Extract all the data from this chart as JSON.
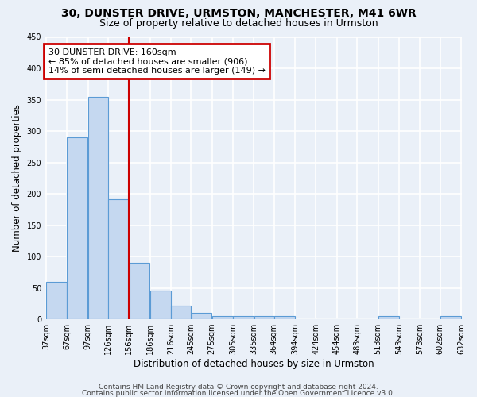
{
  "title_line1": "30, DUNSTER DRIVE, URMSTON, MANCHESTER, M41 6WR",
  "title_line2": "Size of property relative to detached houses in Urmston",
  "xlabel": "Distribution of detached houses by size in Urmston",
  "ylabel": "Number of detached properties",
  "bar_left_edges": [
    37,
    67,
    97,
    126,
    156,
    186,
    216,
    245,
    275,
    305,
    335,
    364,
    394,
    424,
    454,
    483,
    513,
    543,
    573,
    602
  ],
  "bar_widths": [
    30,
    30,
    29,
    30,
    30,
    30,
    29,
    30,
    30,
    30,
    29,
    30,
    30,
    30,
    29,
    30,
    30,
    30,
    29,
    30
  ],
  "bar_heights": [
    59,
    290,
    355,
    191,
    90,
    46,
    21,
    10,
    5,
    5,
    5,
    5,
    0,
    0,
    0,
    0,
    5,
    0,
    0,
    5
  ],
  "bar_color": "#c5d8f0",
  "bar_edgecolor": "#5b9bd5",
  "tick_labels": [
    "37sqm",
    "67sqm",
    "97sqm",
    "126sqm",
    "156sqm",
    "186sqm",
    "216sqm",
    "245sqm",
    "275sqm",
    "305sqm",
    "335sqm",
    "364sqm",
    "394sqm",
    "424sqm",
    "454sqm",
    "483sqm",
    "513sqm",
    "543sqm",
    "573sqm",
    "602sqm",
    "632sqm"
  ],
  "ylim": [
    0,
    450
  ],
  "yticks": [
    0,
    50,
    100,
    150,
    200,
    250,
    300,
    350,
    400,
    450
  ],
  "vline_x": 156,
  "vline_color": "#cc0000",
  "annotation_text": "30 DUNSTER DRIVE: 160sqm\n← 85% of detached houses are smaller (906)\n14% of semi-detached houses are larger (149) →",
  "annotation_box_color": "#cc0000",
  "bg_color": "#eaf0f8",
  "plot_bg_color": "#eaf0f8",
  "grid_color": "#ffffff",
  "footer_line1": "Contains HM Land Registry data © Crown copyright and database right 2024.",
  "footer_line2": "Contains public sector information licensed under the Open Government Licence v3.0.",
  "title_fontsize": 10,
  "subtitle_fontsize": 9,
  "axis_label_fontsize": 8.5,
  "tick_fontsize": 7,
  "annotation_fontsize": 8,
  "footer_fontsize": 6.5
}
